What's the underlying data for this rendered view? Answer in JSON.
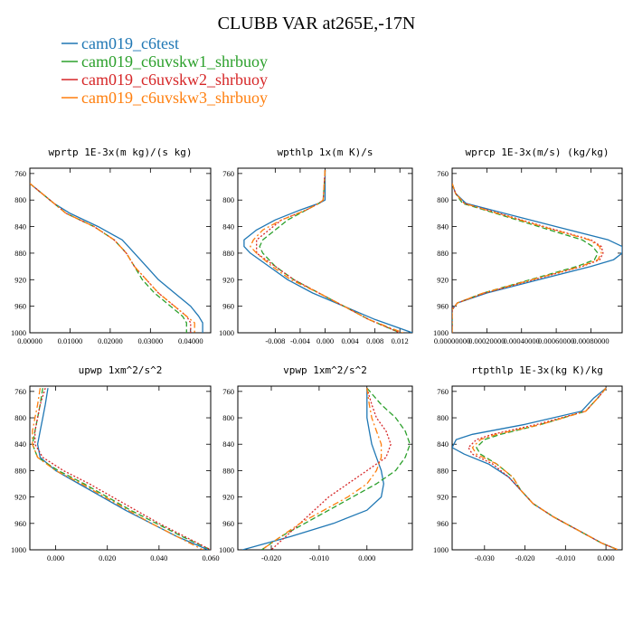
{
  "title": "CLUBB VAR at265E,-17N",
  "legend": [
    {
      "name": "cam019_c6test",
      "color": "#1f77b4",
      "dash": "solid"
    },
    {
      "name": "cam019_c6uvskw1_shrbuoy",
      "color": "#2ca02c",
      "dash": "dashed"
    },
    {
      "name": "cam019_c6uvskw2_shrbuoy",
      "color": "#d62728",
      "dash": "dotted"
    },
    {
      "name": "cam019_c6uvskw3_shrbuoy",
      "color": "#ff7f0e",
      "dash": "dashdot"
    }
  ],
  "chart_data": [
    {
      "type": "line",
      "title": "wprtp  1E-3x(m kg)/(s kg)",
      "ylim": [
        1000,
        752
      ],
      "yticks": [
        "760",
        "800",
        "840",
        "880",
        "920",
        "960",
        "1000"
      ],
      "xlim": [
        0,
        0.045
      ],
      "xticks": [
        "0.00000",
        "0.01000",
        "0.02000",
        "0.03000",
        "0.04000"
      ],
      "y": [
        775,
        790,
        805,
        820,
        840,
        860,
        880,
        900,
        920,
        940,
        960,
        975,
        985,
        1000
      ],
      "series": [
        {
          "name": "cam019_c6test",
          "values": [
            0.0,
            0.003,
            0.006,
            0.01,
            0.017,
            0.023,
            0.026,
            0.029,
            0.032,
            0.036,
            0.04,
            0.042,
            0.043,
            0.043
          ]
        },
        {
          "name": "cam019_c6uvskw1_shrbuoy",
          "values": [
            0.0,
            0.003,
            0.006,
            0.009,
            0.016,
            0.021,
            0.024,
            0.026,
            0.028,
            0.031,
            0.035,
            0.038,
            0.039,
            0.039
          ]
        },
        {
          "name": "cam019_c6uvskw2_shrbuoy",
          "values": [
            0.0,
            0.003,
            0.006,
            0.009,
            0.016,
            0.021,
            0.024,
            0.026,
            0.029,
            0.032,
            0.036,
            0.039,
            0.04,
            0.04
          ]
        },
        {
          "name": "cam019_c6uvskw3_shrbuoy",
          "values": [
            0.0,
            0.003,
            0.006,
            0.009,
            0.016,
            0.021,
            0.024,
            0.026,
            0.029,
            0.032,
            0.036,
            0.039,
            0.041,
            0.041
          ]
        }
      ]
    },
    {
      "type": "line",
      "title": "wpthlp  1x(m K)/s",
      "ylim": [
        1000,
        752
      ],
      "yticks": [
        "760",
        "800",
        "840",
        "880",
        "920",
        "960",
        "1000"
      ],
      "xlim": [
        -0.014,
        0.014
      ],
      "xticks": [
        "-0.008",
        "-0.004",
        "0.000",
        "0.004",
        "0.008",
        "0.012"
      ],
      "y": [
        755,
        800,
        805,
        815,
        830,
        845,
        860,
        870,
        880,
        900,
        920,
        940,
        960,
        980,
        1000
      ],
      "series": [
        {
          "name": "cam019_c6test",
          "values": [
            0.0,
            0.0,
            -0.001,
            -0.004,
            -0.008,
            -0.011,
            -0.013,
            -0.013,
            -0.012,
            -0.009,
            -0.006,
            -0.002,
            0.003,
            0.008,
            0.014
          ]
        },
        {
          "name": "cam019_c6uvskw1_shrbuoy",
          "values": [
            0.0,
            -0.0003,
            -0.001,
            -0.003,
            -0.006,
            -0.008,
            -0.01,
            -0.0105,
            -0.01,
            -0.008,
            -0.005,
            -0.001,
            0.003,
            0.007,
            0.012
          ]
        },
        {
          "name": "cam019_c6uvskw2_shrbuoy",
          "values": [
            0.0,
            -0.0003,
            -0.001,
            -0.003,
            -0.007,
            -0.009,
            -0.011,
            -0.011,
            -0.011,
            -0.008,
            -0.005,
            -0.001,
            0.003,
            0.007,
            0.012
          ]
        },
        {
          "name": "cam019_c6uvskw3_shrbuoy",
          "values": [
            0.0,
            -0.0003,
            -0.001,
            -0.003,
            -0.007,
            -0.01,
            -0.0115,
            -0.012,
            -0.011,
            -0.0085,
            -0.0055,
            -0.001,
            0.003,
            0.007,
            0.0125
          ]
        }
      ]
    },
    {
      "type": "line",
      "title": "wprcp  1E-3x(m/s) (kg/kg)",
      "ylim": [
        1000,
        752
      ],
      "yticks": [
        "760",
        "800",
        "840",
        "880",
        "920",
        "960",
        "1000"
      ],
      "xlim": [
        0,
        0.00098
      ],
      "xticks": [
        "0.00000000",
        "0.00020000",
        "0.00040000",
        "0.00060000",
        "0.00080000"
      ],
      "y": [
        775,
        790,
        805,
        820,
        840,
        860,
        870,
        880,
        890,
        900,
        920,
        940,
        955,
        965,
        1000
      ],
      "series": [
        {
          "name": "cam019_c6test",
          "values": [
            0,
            2e-05,
            8e-05,
            0.0003,
            0.0006,
            0.0009,
            0.00098,
            0.00098,
            0.00093,
            0.0008,
            0.0005,
            0.0002,
            3e-05,
            0,
            0
          ]
        },
        {
          "name": "cam019_c6uvskw1_shrbuoy",
          "values": [
            0,
            2e-05,
            6e-05,
            0.00025,
            0.0005,
            0.00075,
            0.00081,
            0.00084,
            0.00082,
            0.00072,
            0.00045,
            0.00018,
            3e-05,
            0,
            0
          ]
        },
        {
          "name": "cam019_c6uvskw2_shrbuoy",
          "values": [
            0,
            2e-05,
            7e-05,
            0.00027,
            0.00053,
            0.0008,
            0.00086,
            0.00087,
            0.00085,
            0.00075,
            0.00047,
            0.00019,
            3e-05,
            0,
            0
          ]
        },
        {
          "name": "cam019_c6uvskw3_shrbuoy",
          "values": [
            0,
            2e-05,
            7e-05,
            0.00026,
            0.00052,
            0.00079,
            0.00085,
            0.00086,
            0.00084,
            0.00074,
            0.00046,
            0.00018,
            3e-05,
            0,
            0
          ]
        }
      ]
    },
    {
      "type": "line",
      "title": "upwp  1xm^2/s^2",
      "ylim": [
        1000,
        752
      ],
      "yticks": [
        "760",
        "800",
        "840",
        "880",
        "920",
        "960",
        "1000"
      ],
      "xlim": [
        -0.01,
        0.06
      ],
      "xticks": [
        "0.000",
        "0.020",
        "0.040",
        "0.060"
      ],
      "y": [
        755,
        780,
        800,
        820,
        840,
        860,
        880,
        900,
        920,
        940,
        960,
        980,
        1000
      ],
      "series": [
        {
          "name": "cam019_c6test",
          "values": [
            -0.003,
            -0.004,
            -0.005,
            -0.006,
            -0.007,
            -0.006,
            0.0,
            0.009,
            0.018,
            0.027,
            0.037,
            0.047,
            0.059
          ]
        },
        {
          "name": "cam019_c6uvskw1_shrbuoy",
          "values": [
            -0.005,
            -0.006,
            -0.007,
            -0.008,
            -0.009,
            -0.007,
            0.001,
            0.011,
            0.02,
            0.029,
            0.039,
            0.049,
            0.06
          ]
        },
        {
          "name": "cam019_c6uvskw2_shrbuoy",
          "values": [
            -0.004,
            -0.006,
            -0.007,
            -0.008,
            -0.008,
            -0.005,
            0.003,
            0.013,
            0.022,
            0.031,
            0.04,
            0.05,
            0.06
          ]
        },
        {
          "name": "cam019_c6uvskw3_shrbuoy",
          "values": [
            -0.006,
            -0.007,
            -0.008,
            -0.009,
            -0.009,
            -0.007,
            0.0,
            0.01,
            0.019,
            0.028,
            0.037,
            0.047,
            0.057
          ]
        }
      ]
    },
    {
      "type": "line",
      "title": "vpwp  1xm^2/s^2",
      "ylim": [
        1000,
        752
      ],
      "yticks": [
        "760",
        "800",
        "840",
        "880",
        "920",
        "960",
        "1000"
      ],
      "xlim": [
        -0.027,
        0.0095
      ],
      "xticks": [
        "-0.020",
        "-0.010",
        "0.000"
      ],
      "y": [
        755,
        780,
        800,
        820,
        840,
        860,
        880,
        900,
        920,
        940,
        960,
        980,
        1000
      ],
      "series": [
        {
          "name": "cam019_c6test",
          "values": [
            0.0,
            0.0,
            0.0,
            0.0005,
            0.001,
            0.002,
            0.003,
            0.0035,
            0.003,
            0.0,
            -0.007,
            -0.016,
            -0.026
          ]
        },
        {
          "name": "cam019_c6uvskw1_shrbuoy",
          "values": [
            0.0,
            0.003,
            0.006,
            0.008,
            0.009,
            0.008,
            0.006,
            0.002,
            -0.003,
            -0.008,
            -0.013,
            -0.018,
            -0.022
          ]
        },
        {
          "name": "cam019_c6uvskw2_shrbuoy",
          "values": [
            0.0,
            0.001,
            0.002,
            0.004,
            0.005,
            0.004,
            0.0,
            -0.004,
            -0.008,
            -0.011,
            -0.014,
            -0.017,
            -0.02
          ]
        },
        {
          "name": "cam019_c6uvskw3_shrbuoy",
          "values": [
            0.0,
            0.0005,
            0.001,
            0.002,
            0.003,
            0.003,
            0.002,
            0.0,
            -0.004,
            -0.009,
            -0.014,
            -0.018,
            -0.022
          ]
        }
      ]
    },
    {
      "type": "line",
      "title": "rtpthlp  1E-3x(kg K)/kg",
      "ylim": [
        1000,
        752
      ],
      "yticks": [
        "760",
        "800",
        "840",
        "880",
        "920",
        "960",
        "1000"
      ],
      "xlim": [
        -0.038,
        0.004
      ],
      "xticks": [
        "-0.030",
        "-0.020",
        "-0.010",
        "0.000"
      ],
      "y": [
        755,
        770,
        790,
        810,
        825,
        833,
        845,
        855,
        870,
        890,
        910,
        930,
        950,
        970,
        990,
        1000
      ],
      "series": [
        {
          "name": "cam019_c6test",
          "values": [
            0.0,
            -0.003,
            -0.006,
            -0.02,
            -0.033,
            -0.037,
            -0.038,
            -0.035,
            -0.029,
            -0.024,
            -0.021,
            -0.018,
            -0.013,
            -0.007,
            -0.001,
            0.003
          ]
        },
        {
          "name": "cam019_c6uvskw1_shrbuoy",
          "values": [
            0.0,
            -0.002,
            -0.005,
            -0.016,
            -0.026,
            -0.03,
            -0.032,
            -0.031,
            -0.027,
            -0.023,
            -0.021,
            -0.018,
            -0.013,
            -0.007,
            -0.001,
            0.003
          ]
        },
        {
          "name": "cam019_c6uvskw2_shrbuoy",
          "values": [
            0.0,
            -0.002,
            -0.005,
            -0.017,
            -0.028,
            -0.032,
            -0.034,
            -0.033,
            -0.028,
            -0.024,
            -0.021,
            -0.018,
            -0.013,
            -0.007,
            -0.001,
            0.003
          ]
        },
        {
          "name": "cam019_c6uvskw3_shrbuoy",
          "values": [
            0.0,
            -0.002,
            -0.005,
            -0.016,
            -0.027,
            -0.031,
            -0.033,
            -0.032,
            -0.027,
            -0.023,
            -0.021,
            -0.018,
            -0.013,
            -0.007,
            -0.001,
            0.003
          ]
        }
      ]
    }
  ]
}
